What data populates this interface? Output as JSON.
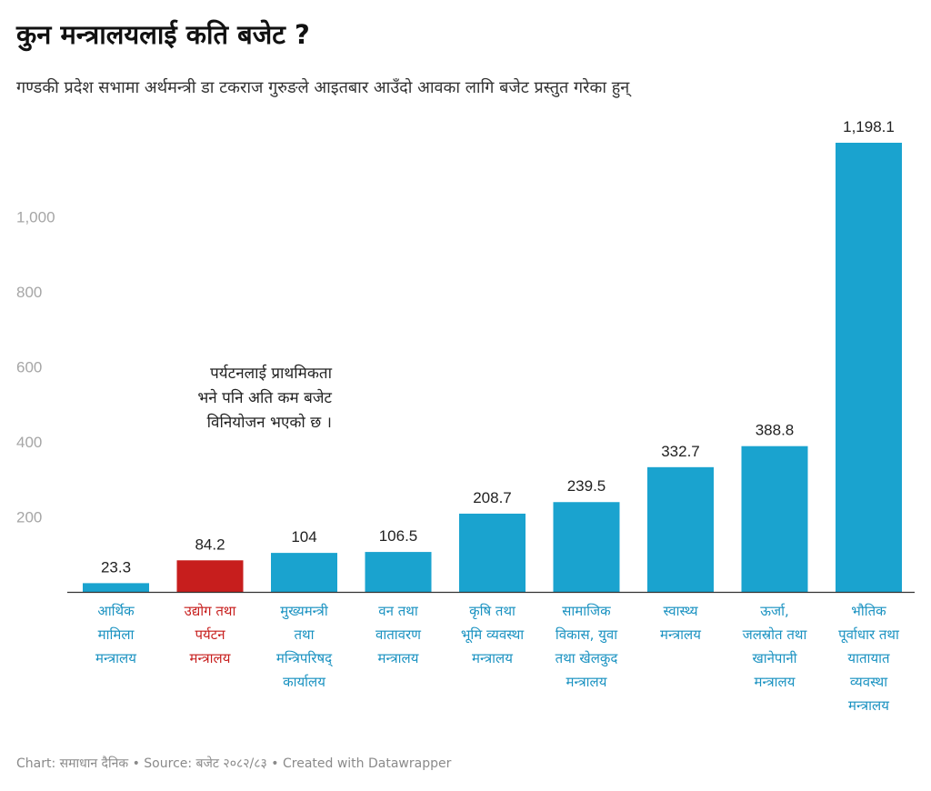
{
  "chart_data": {
    "type": "bar",
    "title": "कुन मन्त्रालयलाई कति बजेट ?",
    "subtitle": "गण्डकी प्रदेश सभामा अर्थमन्त्री डा टकराज गुरुङले आइतबार आउँदो आवका लागि बजेट प्रस्तुत गरेका हुन्",
    "categories": [
      [
        "आर्थिक",
        "मामिला",
        "मन्त्रालय"
      ],
      [
        "उद्योग तथा",
        "पर्यटन",
        "मन्त्रालय"
      ],
      [
        "मुख्यमन्त्री",
        "तथा",
        "मन्त्रिपरिषद्",
        "कार्यालय"
      ],
      [
        "वन तथा",
        "वातावरण",
        "मन्त्रालय"
      ],
      [
        "कृषि तथा",
        "भूमि व्यवस्था",
        "मन्त्रालय"
      ],
      [
        "सामाजिक",
        "विकास, युवा",
        "तथा खेलकुद",
        "मन्त्रालय"
      ],
      [
        "स्वास्थ्य",
        "मन्त्रालय"
      ],
      [
        "ऊर्जा,",
        "जलस्रोत तथा",
        "खानेपानी",
        "मन्त्रालय"
      ],
      [
        "भौतिक",
        "पूर्वाधार तथा",
        "यातायात",
        "व्यवस्था",
        "मन्त्रालय"
      ]
    ],
    "values": [
      23.3,
      84.2,
      104,
      106.5,
      208.7,
      239.5,
      332.7,
      388.8,
      1198.1
    ],
    "value_labels": [
      "23.3",
      "84.2",
      "104",
      "106.5",
      "208.7",
      "239.5",
      "332.7",
      "388.8",
      "1,198.1"
    ],
    "highlight_index": 1,
    "yticks": [
      200,
      400,
      600,
      800,
      1000
    ],
    "ytick_labels": [
      "200",
      "400",
      "600",
      "800",
      "1,000"
    ],
    "ylim": [
      0,
      1198.1
    ],
    "grid": false,
    "colors": {
      "bar": "#1aa3cf",
      "highlight": "#c71e1d",
      "category_text": "#1a92c1",
      "highlight_text": "#c71e1d"
    },
    "annotation": [
      "पर्यटनलाई प्राथमिकता",
      "भने पनि अति कम बजेट",
      "विनियोजन भएको छ ।"
    ],
    "footer": "Chart: समाधान दैनिक • Source: बजेट २०८२/८३ • Created with Datawrapper"
  }
}
